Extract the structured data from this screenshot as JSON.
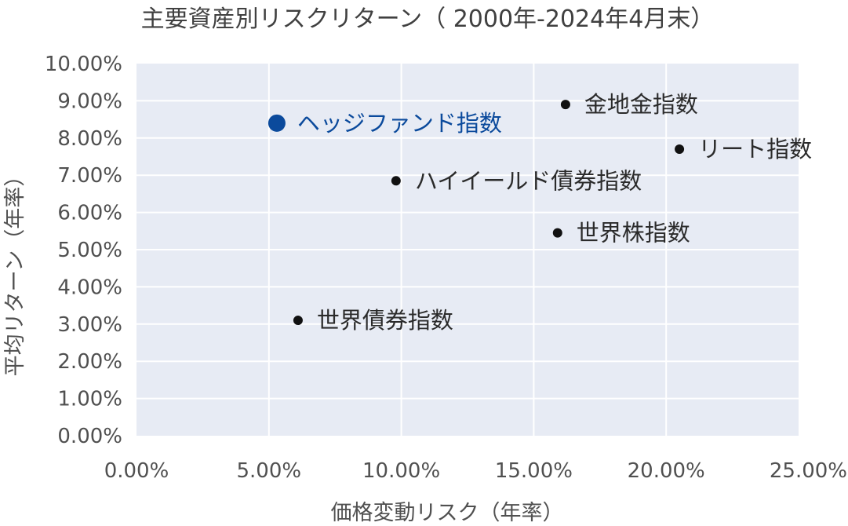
{
  "chart_data": {
    "type": "scatter",
    "title": "主要資産別リスクリターン（ 2000年-2024年4月末）",
    "xlabel": "価格変動リスク（年率）",
    "ylabel": "平均リターン（年率）",
    "xlim": [
      0,
      25
    ],
    "ylim": [
      0,
      10
    ],
    "x_ticks": [
      "0.00%",
      "5.00%",
      "10.00%",
      "15.00%",
      "20.00%",
      "25.00%"
    ],
    "y_ticks": [
      "0.00%",
      "1.00%",
      "2.00%",
      "3.00%",
      "4.00%",
      "5.00%",
      "6.00%",
      "7.00%",
      "8.00%",
      "9.00%",
      "10.00%"
    ],
    "grid": true,
    "legend": "none",
    "colors": {
      "plot_bg": "#e7ebf4",
      "point": "#111111",
      "highlight": "#0b4a9c"
    },
    "points": [
      {
        "label": "ヘッジファンド指数",
        "x": 5.3,
        "y": 8.4,
        "highlight": true
      },
      {
        "label": "金地金指数",
        "x": 16.2,
        "y": 8.9,
        "highlight": false
      },
      {
        "label": "リート指数",
        "x": 20.5,
        "y": 7.7,
        "highlight": false
      },
      {
        "label": "ハイイールド債券指数",
        "x": 9.8,
        "y": 6.85,
        "highlight": false
      },
      {
        "label": "世界株指数",
        "x": 15.9,
        "y": 5.45,
        "highlight": false
      },
      {
        "label": "世界債券指数",
        "x": 6.1,
        "y": 3.1,
        "highlight": false
      }
    ]
  }
}
